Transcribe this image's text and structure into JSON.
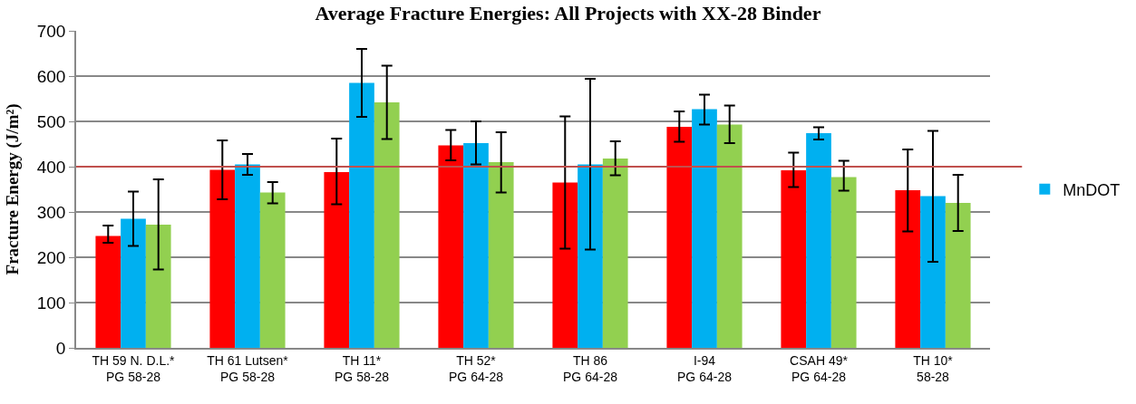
{
  "chart_data": {
    "type": "bar",
    "title": "Average Fracture Energies: All Projects with XX-28 Binder",
    "ylabel": "Fracture Energy (J/m²)",
    "categories": [
      "TH 59 N. D.L.*\nPG 58-28",
      "TH 61 Lutsen*\nPG 58-28",
      "TH 11*\nPG 58-28",
      "TH 52*\nPG 64-28",
      "TH 86\nPG 64-28",
      "I-94\nPG 64-28",
      "CSAH 49*\nPG 64-28",
      "TH 10*\n58-28"
    ],
    "series": [
      {
        "color": "#ff0000",
        "values": [
          247,
          393,
          388,
          447,
          365,
          488,
          392,
          348
        ],
        "errors": [
          [
            232,
            270
          ],
          [
            328,
            458
          ],
          [
            317,
            462
          ],
          [
            414,
            481
          ],
          [
            219,
            511
          ],
          [
            455,
            522
          ],
          [
            355,
            431
          ],
          [
            257,
            438
          ]
        ]
      },
      {
        "name": "MnDOT",
        "color": "#00b0f0",
        "values": [
          285,
          405,
          585,
          452,
          405,
          527,
          474,
          335
        ],
        "errors": [
          [
            225,
            345
          ],
          [
            382,
            428
          ],
          [
            510,
            660
          ],
          [
            405,
            500
          ],
          [
            217,
            594
          ],
          [
            493,
            559
          ],
          [
            460,
            487
          ],
          [
            190,
            479
          ]
        ]
      },
      {
        "color": "#92d050",
        "values": [
          272,
          343,
          542,
          410,
          418,
          493,
          377,
          320
        ],
        "errors": [
          [
            173,
            372
          ],
          [
            319,
            366
          ],
          [
            461,
            623
          ],
          [
            343,
            476
          ],
          [
            381,
            456
          ],
          [
            452,
            535
          ],
          [
            347,
            413
          ],
          [
            258,
            382
          ]
        ]
      }
    ],
    "ylim": [
      0,
      700
    ],
    "yticks": [
      0,
      100,
      200,
      300,
      400,
      500,
      600,
      700
    ],
    "grid": "y",
    "legend": "right",
    "ref_lines": [
      {
        "axis": "y",
        "value": 400,
        "color": "#c0504d"
      }
    ]
  }
}
